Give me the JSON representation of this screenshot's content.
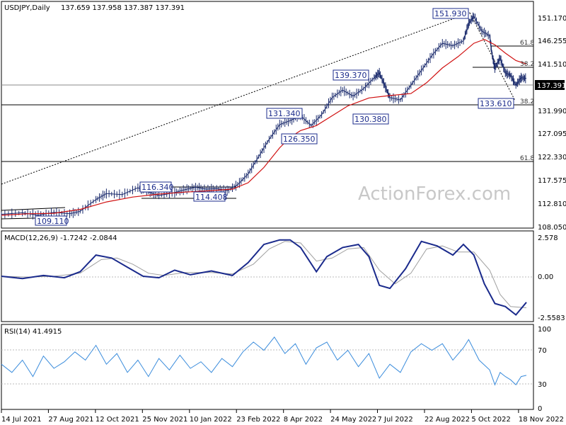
{
  "chart_data": [
    {
      "type": "candlestick",
      "title": "USDJPY,Daily",
      "ohlc": "137.659 137.958 137.387 137.391",
      "watermark": "ActionForex.com",
      "current_price": "137.391",
      "y_ticks": [
        "151.170",
        "146.255",
        "141.510",
        "136.750",
        "131.990",
        "127.095",
        "122.330",
        "117.575",
        "112.810",
        "108.050"
      ],
      "ylim": [
        107.0,
        153.0
      ],
      "x_ticks": [
        "14 Jul 2021",
        "27 Aug 2021",
        "12 Oct 2021",
        "25 Nov 2021",
        "10 Jan 2022",
        "23 Feb 2022",
        "8 Apr 2022",
        "24 May 2022",
        "7 Jul 2022",
        "22 Aug 2022",
        "5 Oct 2022",
        "18 Nov 2022"
      ],
      "price_path": [
        [
          0,
          109.8
        ],
        [
          0.04,
          110.1
        ],
        [
          0.07,
          109.6
        ],
        [
          0.1,
          110.2
        ],
        [
          0.13,
          109.9
        ],
        [
          0.15,
          110.4
        ],
        [
          0.18,
          112.8
        ],
        [
          0.2,
          114.0
        ],
        [
          0.23,
          113.8
        ],
        [
          0.26,
          115.2
        ],
        [
          0.28,
          114.3
        ],
        [
          0.3,
          113.6
        ],
        [
          0.33,
          114.2
        ],
        [
          0.35,
          114.8
        ],
        [
          0.37,
          115.3
        ],
        [
          0.39,
          114.9
        ],
        [
          0.41,
          115.0
        ],
        [
          0.43,
          114.6
        ],
        [
          0.45,
          115.8
        ],
        [
          0.47,
          118.0
        ],
        [
          0.49,
          121.5
        ],
        [
          0.51,
          125.0
        ],
        [
          0.53,
          128.0
        ],
        [
          0.55,
          128.8
        ],
        [
          0.57,
          129.8
        ],
        [
          0.59,
          127.8
        ],
        [
          0.61,
          130.0
        ],
        [
          0.63,
          133.5
        ],
        [
          0.65,
          135.0
        ],
        [
          0.67,
          133.8
        ],
        [
          0.69,
          135.3
        ],
        [
          0.71,
          137.5
        ],
        [
          0.72,
          138.5
        ],
        [
          0.73,
          136.0
        ],
        [
          0.74,
          133.5
        ],
        [
          0.76,
          133.0
        ],
        [
          0.78,
          136.0
        ],
        [
          0.8,
          139.0
        ],
        [
          0.82,
          142.0
        ],
        [
          0.84,
          144.5
        ],
        [
          0.86,
          144.0
        ],
        [
          0.88,
          145.0
        ],
        [
          0.89,
          148.5
        ],
        [
          0.9,
          150.0
        ],
        [
          0.915,
          147.0
        ],
        [
          0.93,
          146.0
        ],
        [
          0.935,
          142.0
        ],
        [
          0.94,
          139.5
        ],
        [
          0.95,
          141.5
        ],
        [
          0.96,
          138.5
        ],
        [
          0.97,
          138.0
        ],
        [
          0.98,
          136.0
        ],
        [
          0.99,
          137.5
        ],
        [
          1.0,
          137.39
        ]
      ],
      "ema_path": [
        [
          0,
          109.6
        ],
        [
          0.05,
          109.9
        ],
        [
          0.1,
          110.0
        ],
        [
          0.15,
          110.8
        ],
        [
          0.2,
          112.3
        ],
        [
          0.25,
          113.3
        ],
        [
          0.3,
          113.9
        ],
        [
          0.35,
          114.3
        ],
        [
          0.4,
          114.6
        ],
        [
          0.44,
          114.9
        ],
        [
          0.47,
          116.2
        ],
        [
          0.5,
          119.3
        ],
        [
          0.53,
          123.3
        ],
        [
          0.55,
          125.4
        ],
        [
          0.57,
          126.8
        ],
        [
          0.6,
          127.8
        ],
        [
          0.63,
          129.8
        ],
        [
          0.66,
          131.8
        ],
        [
          0.7,
          133.4
        ],
        [
          0.74,
          133.9
        ],
        [
          0.78,
          134.3
        ],
        [
          0.81,
          136.5
        ],
        [
          0.84,
          139.5
        ],
        [
          0.87,
          141.8
        ],
        [
          0.9,
          144.5
        ],
        [
          0.92,
          145.3
        ],
        [
          0.94,
          144.2
        ],
        [
          0.96,
          142.5
        ],
        [
          0.98,
          141.0
        ],
        [
          1.0,
          140.3
        ]
      ],
      "price_labels": [
        "109.110",
        "116.340",
        "114.408",
        "131.340",
        "126.350",
        "139.370",
        "130.380",
        "151.930",
        "133.610"
      ],
      "fib_labels": [
        "61.8",
        "38.2",
        "38.2",
        "61.8"
      ]
    },
    {
      "type": "line",
      "title": "MACD(12,26,9) -1.7242 -2.0844",
      "y_ticks": [
        "2.578",
        "0.00",
        "-2.5583"
      ],
      "ylim": [
        -2.9,
        2.9
      ],
      "macd_path": [
        [
          0,
          0.0
        ],
        [
          0.04,
          -0.15
        ],
        [
          0.08,
          0.05
        ],
        [
          0.12,
          -0.1
        ],
        [
          0.15,
          0.3
        ],
        [
          0.18,
          1.4
        ],
        [
          0.21,
          1.2
        ],
        [
          0.24,
          0.6
        ],
        [
          0.27,
          0.0
        ],
        [
          0.3,
          -0.1
        ],
        [
          0.33,
          0.4
        ],
        [
          0.36,
          0.1
        ],
        [
          0.4,
          0.35
        ],
        [
          0.44,
          0.05
        ],
        [
          0.47,
          0.9
        ],
        [
          0.5,
          2.1
        ],
        [
          0.53,
          2.4
        ],
        [
          0.55,
          2.4
        ],
        [
          0.57,
          1.9
        ],
        [
          0.6,
          0.3
        ],
        [
          0.62,
          1.3
        ],
        [
          0.65,
          1.9
        ],
        [
          0.68,
          2.1
        ],
        [
          0.7,
          1.3
        ],
        [
          0.72,
          -0.6
        ],
        [
          0.74,
          -0.8
        ],
        [
          0.77,
          0.5
        ],
        [
          0.8,
          2.3
        ],
        [
          0.83,
          2.0
        ],
        [
          0.86,
          1.4
        ],
        [
          0.88,
          2.1
        ],
        [
          0.9,
          1.4
        ],
        [
          0.92,
          -0.5
        ],
        [
          0.94,
          -1.8
        ],
        [
          0.96,
          -2.0
        ],
        [
          0.98,
          -2.55
        ],
        [
          1.0,
          -1.72
        ]
      ],
      "signal_path": [
        [
          0,
          0.0
        ],
        [
          0.05,
          -0.05
        ],
        [
          0.1,
          0.0
        ],
        [
          0.15,
          0.2
        ],
        [
          0.19,
          1.1
        ],
        [
          0.22,
          1.2
        ],
        [
          0.25,
          0.8
        ],
        [
          0.28,
          0.2
        ],
        [
          0.31,
          0.05
        ],
        [
          0.35,
          0.25
        ],
        [
          0.4,
          0.25
        ],
        [
          0.44,
          0.15
        ],
        [
          0.48,
          0.8
        ],
        [
          0.51,
          1.8
        ],
        [
          0.54,
          2.3
        ],
        [
          0.57,
          2.2
        ],
        [
          0.6,
          1.0
        ],
        [
          0.63,
          1.2
        ],
        [
          0.66,
          1.8
        ],
        [
          0.69,
          1.9
        ],
        [
          0.72,
          0.4
        ],
        [
          0.75,
          -0.5
        ],
        [
          0.78,
          0.2
        ],
        [
          0.81,
          1.8
        ],
        [
          0.84,
          2.0
        ],
        [
          0.87,
          1.6
        ],
        [
          0.9,
          1.6
        ],
        [
          0.93,
          0.4
        ],
        [
          0.95,
          -1.2
        ],
        [
          0.97,
          -2.0
        ],
        [
          1.0,
          -2.08
        ]
      ]
    },
    {
      "type": "line",
      "title": "RSI(14) 41.4915",
      "y_ticks": [
        "100",
        "70",
        "30",
        "0"
      ],
      "ylim": [
        0,
        100
      ],
      "rsi_path": [
        [
          0,
          55
        ],
        [
          0.02,
          45
        ],
        [
          0.04,
          60
        ],
        [
          0.06,
          40
        ],
        [
          0.08,
          65
        ],
        [
          0.1,
          50
        ],
        [
          0.12,
          58
        ],
        [
          0.14,
          70
        ],
        [
          0.16,
          60
        ],
        [
          0.18,
          78
        ],
        [
          0.2,
          55
        ],
        [
          0.22,
          68
        ],
        [
          0.24,
          45
        ],
        [
          0.26,
          60
        ],
        [
          0.28,
          40
        ],
        [
          0.3,
          62
        ],
        [
          0.32,
          48
        ],
        [
          0.34,
          66
        ],
        [
          0.36,
          50
        ],
        [
          0.38,
          58
        ],
        [
          0.4,
          45
        ],
        [
          0.42,
          62
        ],
        [
          0.44,
          52
        ],
        [
          0.46,
          70
        ],
        [
          0.48,
          82
        ],
        [
          0.5,
          72
        ],
        [
          0.52,
          88
        ],
        [
          0.54,
          68
        ],
        [
          0.56,
          80
        ],
        [
          0.58,
          55
        ],
        [
          0.6,
          75
        ],
        [
          0.62,
          82
        ],
        [
          0.64,
          60
        ],
        [
          0.66,
          72
        ],
        [
          0.68,
          52
        ],
        [
          0.7,
          68
        ],
        [
          0.72,
          38
        ],
        [
          0.74,
          55
        ],
        [
          0.76,
          45
        ],
        [
          0.78,
          70
        ],
        [
          0.8,
          80
        ],
        [
          0.82,
          72
        ],
        [
          0.84,
          80
        ],
        [
          0.86,
          60
        ],
        [
          0.88,
          75
        ],
        [
          0.89,
          85
        ],
        [
          0.91,
          60
        ],
        [
          0.93,
          48
        ],
        [
          0.94,
          30
        ],
        [
          0.95,
          45
        ],
        [
          0.96,
          40
        ],
        [
          0.97,
          36
        ],
        [
          0.98,
          30
        ],
        [
          0.99,
          40
        ],
        [
          1.0,
          41.49
        ]
      ]
    }
  ],
  "colors": {
    "price": "#1a2a6c",
    "ema": "#d01010",
    "macd": "#1a2a8c",
    "signal": "#a0a0a0",
    "rsi": "#3a8cdc",
    "grid": "#000000"
  }
}
